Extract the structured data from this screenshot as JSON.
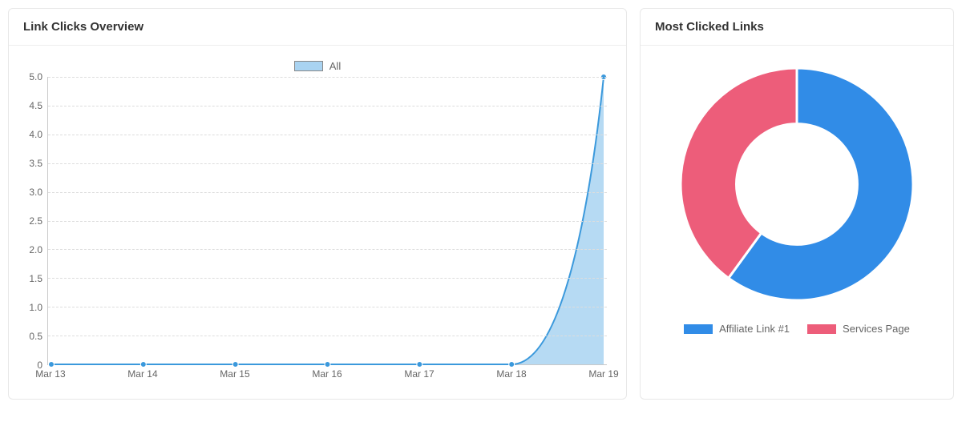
{
  "overview_card": {
    "title": "Link Clicks Overview",
    "chart": {
      "type": "area",
      "legend_label": "All",
      "legend_swatch_fill": "#a9d3f1",
      "legend_swatch_border": "#888888",
      "x_labels": [
        "Mar 13",
        "Mar 14",
        "Mar 15",
        "Mar 16",
        "Mar 17",
        "Mar 18",
        "Mar 19"
      ],
      "y_values": [
        0,
        0,
        0,
        0,
        0,
        0,
        5
      ],
      "ylim": [
        0,
        5
      ],
      "ytick_step": 0.5,
      "y_tick_labels": [
        "0",
        "0.5",
        "1.0",
        "1.5",
        "2.0",
        "2.5",
        "3.0",
        "3.5",
        "4.0",
        "4.5",
        "5.0"
      ],
      "line_color": "#3b99dc",
      "fill_color": "#a9d3f1",
      "fill_opacity": 0.85,
      "point_color": "#3b99dc",
      "point_radius": 3.5,
      "line_width": 2,
      "grid_color": "#dddddd",
      "axis_color": "#c9c9c9",
      "tick_font_color": "#666666",
      "tick_fontsize": 12,
      "background_color": "#ffffff"
    }
  },
  "most_clicked_card": {
    "title": "Most Clicked Links",
    "chart": {
      "type": "donut",
      "slices": [
        {
          "label": "Affiliate Link #1",
          "value": 60,
          "color": "#318ce7"
        },
        {
          "label": "Services Page",
          "value": 40,
          "color": "#ed5d7a"
        }
      ],
      "inner_radius_ratio": 0.52,
      "slice_border_color": "#ffffff",
      "slice_border_width": 3,
      "background_color": "#ffffff",
      "legend_font_color": "#666666",
      "legend_fontsize": 13,
      "start_angle_deg": -90
    }
  },
  "card_border_color": "#e8e8e8",
  "card_title_color": "#333333",
  "card_title_fontsize": 15
}
